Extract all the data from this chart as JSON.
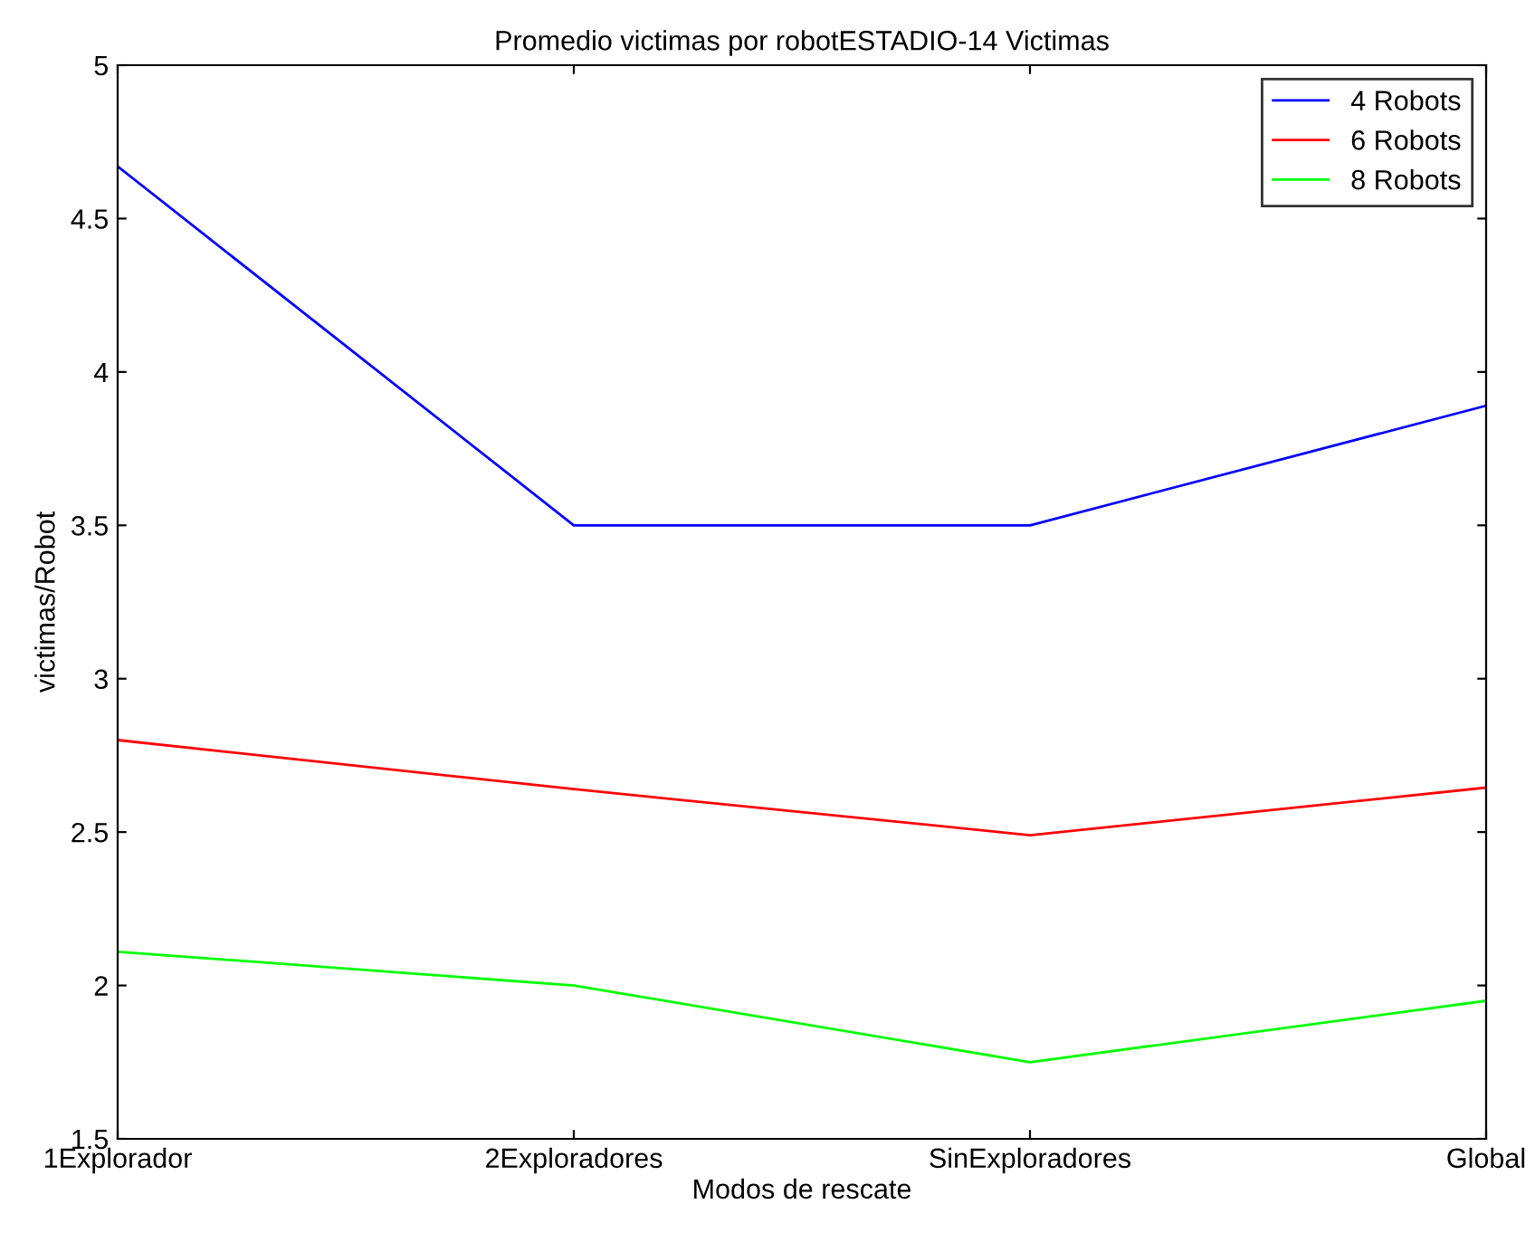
{
  "chart_data": {
    "type": "line",
    "title": "Promedio victimas por robotESTADIO-14 Victimas",
    "xlabel": "Modos de rescate",
    "ylabel": "victimas/Robot",
    "categories": [
      "1Explorador",
      "2Exploradores",
      "SinExploradores",
      "Global"
    ],
    "series": [
      {
        "name": "4 Robots",
        "color": "#0000ff",
        "values": [
          4.67,
          3.5,
          3.5,
          3.89
        ]
      },
      {
        "name": "6 Robots",
        "color": "#ff0000",
        "values": [
          2.8,
          2.64,
          2.49,
          2.645
        ]
      },
      {
        "name": "8 Robots",
        "color": "#00ff00",
        "values": [
          2.11,
          2.0,
          1.75,
          1.95
        ]
      }
    ],
    "ylim": [
      1.5,
      5
    ],
    "yticks": [
      1.5,
      2,
      2.5,
      3,
      3.5,
      4,
      4.5,
      5
    ],
    "grid": false,
    "legend": "top right",
    "marker": "none",
    "line_style": "solid"
  }
}
